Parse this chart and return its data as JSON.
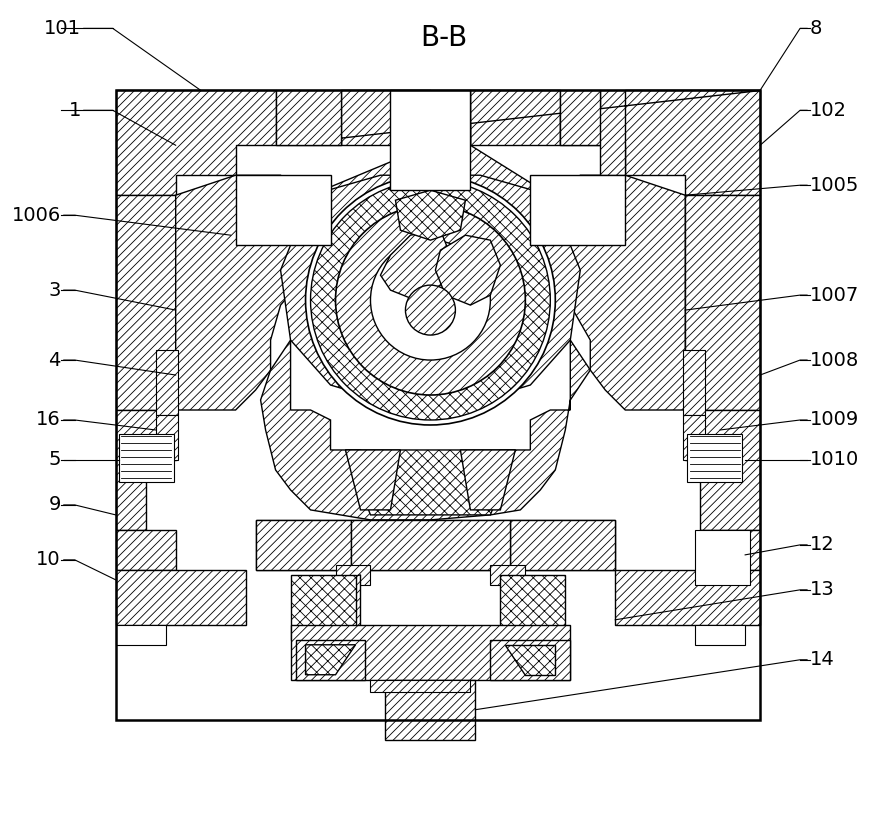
{
  "title": "B-B",
  "bg_color": "#ffffff",
  "lc": "#000000",
  "lw": 1.0,
  "hatch_lw": 0.5
}
